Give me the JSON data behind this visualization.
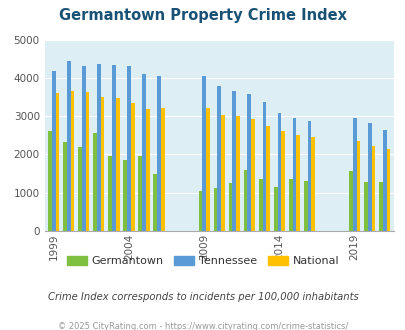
{
  "title": "Germantown Property Crime Index",
  "years": [
    1999,
    2000,
    2001,
    2002,
    2003,
    2004,
    2005,
    2006,
    2009,
    2010,
    2011,
    2012,
    2013,
    2014,
    2015,
    2016,
    2019,
    2020,
    2021
  ],
  "germantown": [
    2600,
    2330,
    2200,
    2550,
    1950,
    1860,
    1960,
    1500,
    1050,
    1120,
    1260,
    1600,
    1350,
    1150,
    1350,
    1300,
    1570,
    1290,
    1290
  ],
  "tennessee": [
    4180,
    4430,
    4320,
    4360,
    4330,
    4310,
    4100,
    4060,
    4060,
    3780,
    3650,
    3590,
    3380,
    3080,
    2940,
    2870,
    2940,
    2820,
    2640
  ],
  "national": [
    3600,
    3650,
    3620,
    3500,
    3480,
    3340,
    3200,
    3220,
    3220,
    3040,
    3000,
    2920,
    2750,
    2620,
    2500,
    2450,
    2340,
    2220,
    2130
  ],
  "bar_colors": {
    "germantown": "#80c040",
    "tennessee": "#5b9bd5",
    "national": "#ffc000"
  },
  "background_color": "#ddeef4",
  "ylim": [
    0,
    5000
  ],
  "yticks": [
    0,
    1000,
    2000,
    3000,
    4000,
    5000
  ],
  "tick_years": [
    1999,
    2004,
    2009,
    2014,
    2019
  ],
  "subtitle": "Crime Index corresponds to incidents per 100,000 inhabitants",
  "footer": "© 2025 CityRating.com - https://www.cityrating.com/crime-statistics/",
  "legend_labels": [
    "Germantown",
    "Tennessee",
    "National"
  ]
}
